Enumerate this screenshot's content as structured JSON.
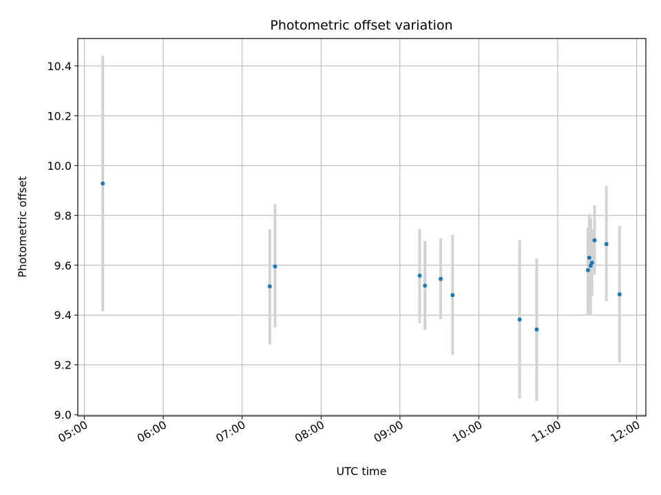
{
  "chart_data": {
    "type": "scatter",
    "title": "Photometric offset variation",
    "xlabel": "UTC time",
    "ylabel": "Photometric offset",
    "x_tick_labels": [
      "05:00",
      "06:00",
      "07:00",
      "08:00",
      "09:00",
      "10:00",
      "11:00",
      "12:00"
    ],
    "x_tick_hours": [
      5,
      6,
      7,
      8,
      9,
      10,
      11,
      12
    ],
    "xlim": [
      "04:55",
      "12:07"
    ],
    "y_ticks": [
      "9.0",
      "9.2",
      "9.4",
      "9.6",
      "9.8",
      "10.0",
      "10.2",
      "10.4"
    ],
    "ylim": [
      8.995,
      10.51
    ],
    "grid": true,
    "point_color": "#1f77b4",
    "errorbar_color": "#d3d3d3",
    "points": [
      {
        "time": "05:14",
        "y": 9.928,
        "low": 9.415,
        "high": 10.44
      },
      {
        "time": "07:21",
        "y": 9.515,
        "low": 9.282,
        "high": 9.745
      },
      {
        "time": "07:25",
        "y": 9.595,
        "low": 9.35,
        "high": 9.845
      },
      {
        "time": "09:15",
        "y": 9.558,
        "low": 9.368,
        "high": 9.745
      },
      {
        "time": "09:19",
        "y": 9.518,
        "low": 9.34,
        "high": 9.697
      },
      {
        "time": "09:31",
        "y": 9.545,
        "low": 9.383,
        "high": 9.707
      },
      {
        "time": "09:40",
        "y": 9.48,
        "low": 9.24,
        "high": 9.722
      },
      {
        "time": "10:31",
        "y": 9.382,
        "low": 9.065,
        "high": 9.7
      },
      {
        "time": "10:44",
        "y": 9.342,
        "low": 9.055,
        "high": 9.627
      },
      {
        "time": "11:23",
        "y": 9.58,
        "low": 9.4,
        "high": 9.75
      },
      {
        "time": "11:24",
        "y": 9.63,
        "low": 9.44,
        "high": 9.805
      },
      {
        "time": "11:25",
        "y": 9.598,
        "low": 9.4,
        "high": 9.79
      },
      {
        "time": "11:26",
        "y": 9.61,
        "low": 9.475,
        "high": 9.745
      },
      {
        "time": "11:28",
        "y": 9.7,
        "low": 9.562,
        "high": 9.84
      },
      {
        "time": "11:37",
        "y": 9.685,
        "low": 9.455,
        "high": 9.918
      },
      {
        "time": "11:47",
        "y": 9.483,
        "low": 9.21,
        "high": 9.757
      }
    ]
  }
}
